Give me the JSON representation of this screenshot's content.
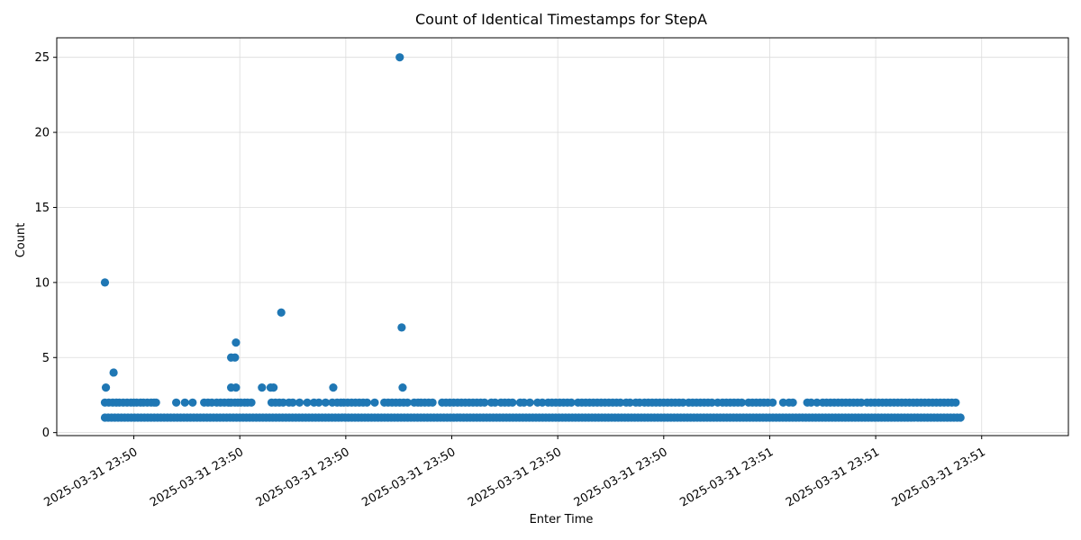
{
  "chart_data": {
    "type": "scatter",
    "title": "Count of Identical Timestamps for StepA",
    "xlabel": "Enter Time",
    "ylabel": "Count",
    "ylim": [
      -0.2,
      26.3
    ],
    "xlim": [
      -5.0,
      100.0
    ],
    "grid": true,
    "marker_color": "#1f77b4",
    "y_ticks": [
      0,
      5,
      10,
      15,
      20,
      25
    ],
    "x_ticks": [
      {
        "value": 3.0,
        "label": "2025-03-31 23:50"
      },
      {
        "value": 14.0,
        "label": "2025-03-31 23:50"
      },
      {
        "value": 25.0,
        "label": "2025-03-31 23:50"
      },
      {
        "value": 36.0,
        "label": "2025-03-31 23:50"
      },
      {
        "value": 47.0,
        "label": "2025-03-31 23:50"
      },
      {
        "value": 58.0,
        "label": "2025-03-31 23:50"
      },
      {
        "value": 69.0,
        "label": "2025-03-31 23:51"
      },
      {
        "value": 80.0,
        "label": "2025-03-31 23:51"
      },
      {
        "value": 91.0,
        "label": "2025-03-31 23:51"
      }
    ],
    "baseline_count": 1,
    "baseline_range": [
      0.0,
      88.8
    ],
    "count2_x": [
      0.0,
      0.4,
      0.8,
      1.2,
      1.5,
      1.9,
      2.3,
      2.7,
      3.0,
      3.3,
      3.7,
      4.0,
      4.4,
      4.8,
      5.1,
      5.3,
      7.4,
      8.3,
      9.1,
      10.3,
      10.7,
      11.1,
      11.6,
      12.0,
      12.4,
      12.8,
      13.1,
      13.5,
      13.8,
      14.1,
      14.5,
      14.8,
      15.2,
      17.3,
      17.7,
      18.1,
      18.5,
      19.1,
      19.5,
      20.2,
      21.0,
      21.7,
      22.2,
      22.9,
      23.6,
      24.1,
      24.5,
      24.8,
      25.2,
      25.6,
      26.0,
      26.4,
      26.8,
      27.2,
      28.0,
      29.0,
      29.4,
      29.8,
      30.2,
      30.6,
      31.0,
      31.4,
      32.1,
      32.5,
      32.8,
      33.2,
      33.6,
      34.0,
      35.0,
      35.4,
      35.8,
      36.2,
      36.6,
      37.0,
      37.4,
      37.8,
      38.2,
      38.6,
      39.0,
      39.4,
      40.1,
      40.5,
      41.1,
      41.5,
      41.9,
      42.3,
      43.1,
      43.5,
      44.1,
      44.9,
      45.4,
      46.0,
      46.4,
      46.8,
      47.2,
      47.6,
      48.0,
      48.4,
      49.1,
      49.5,
      49.9,
      50.3,
      50.7,
      51.1,
      51.5,
      51.9,
      52.3,
      52.7,
      53.1,
      53.5,
      54.1,
      54.5,
      55.1,
      55.5,
      56.0,
      56.4,
      56.8,
      57.2,
      57.6,
      58.0,
      58.4,
      58.8,
      59.2,
      59.6,
      60.0,
      60.6,
      61.0,
      61.4,
      61.8,
      62.2,
      62.6,
      63.0,
      63.6,
      64.1,
      64.5,
      64.9,
      65.3,
      65.7,
      66.1,
      66.8,
      67.2,
      67.6,
      68.0,
      68.4,
      68.8,
      69.3,
      70.4,
      71.0,
      71.4,
      72.9,
      73.3,
      73.9,
      74.5,
      74.9,
      75.3,
      75.7,
      76.1,
      76.5,
      76.9,
      77.3,
      77.7,
      78.1,
      78.5,
      79.1,
      79.5,
      79.9,
      80.3,
      80.7,
      81.1,
      81.5,
      81.9,
      82.3,
      82.7,
      83.1,
      83.5,
      83.9,
      84.3,
      84.7,
      85.1,
      85.5,
      85.9,
      86.3,
      86.7,
      87.1,
      87.5,
      87.9,
      88.3
    ]
  },
  "outliers": [
    {
      "x": 0.0,
      "y": 10
    },
    {
      "x": 0.1,
      "y": 3
    },
    {
      "x": 0.9,
      "y": 4
    },
    {
      "x": 13.1,
      "y": 3
    },
    {
      "x": 13.1,
      "y": 5
    },
    {
      "x": 13.5,
      "y": 5
    },
    {
      "x": 13.6,
      "y": 6
    },
    {
      "x": 13.6,
      "y": 3
    },
    {
      "x": 16.3,
      "y": 3
    },
    {
      "x": 17.2,
      "y": 3
    },
    {
      "x": 17.5,
      "y": 3
    },
    {
      "x": 18.3,
      "y": 8
    },
    {
      "x": 23.7,
      "y": 3
    },
    {
      "x": 30.6,
      "y": 25
    },
    {
      "x": 30.8,
      "y": 7
    },
    {
      "x": 30.9,
      "y": 3
    }
  ]
}
